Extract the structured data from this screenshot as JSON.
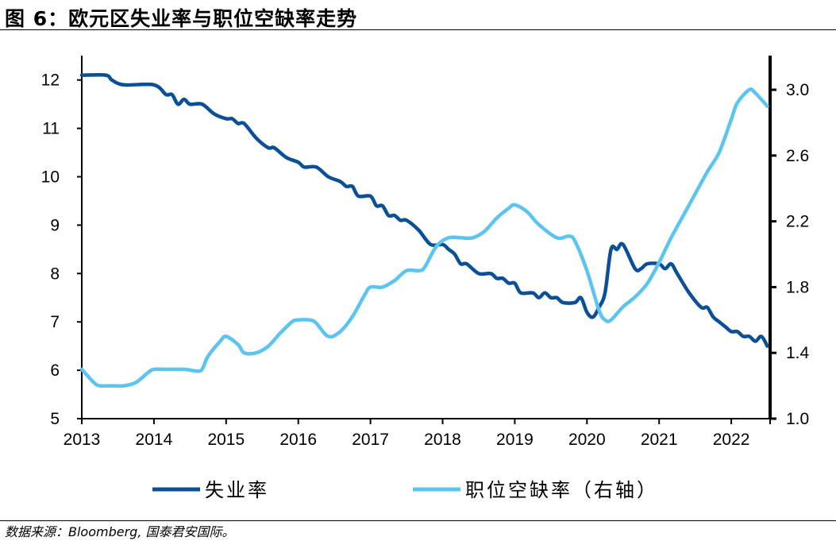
{
  "title": "图 6：欧元区失业率与职位空缺率走势",
  "source": "数据来源：Bloomberg, 国泰君安国际。",
  "chart_data": {
    "type": "line",
    "title": "图 6：欧元区失业率与职位空缺率走势",
    "x_ticks": [
      "2013",
      "2014",
      "2015",
      "2016",
      "2017",
      "2018",
      "2019",
      "2020",
      "2021",
      "2022"
    ],
    "xlim": [
      "2013-01",
      "2022-07"
    ],
    "left_axis": {
      "ylim": [
        5,
        12.5
      ],
      "ticks": [
        "5",
        "6",
        "7",
        "8",
        "9",
        "10",
        "11",
        "12"
      ]
    },
    "right_axis": {
      "ylim": [
        1.0,
        3.2
      ],
      "ticks": [
        "1.0",
        "1.4",
        "1.8",
        "2.2",
        "2.6",
        "3.0"
      ]
    },
    "grid": false,
    "legend_position": "bottom",
    "series": [
      {
        "name": "失业率",
        "axis": "left",
        "color": "#0B4F96",
        "points": [
          [
            "2013-01",
            12.1
          ],
          [
            "2013-05",
            12.1
          ],
          [
            "2013-06",
            12.0
          ],
          [
            "2013-08",
            11.9
          ],
          [
            "2014-01",
            11.9
          ],
          [
            "2014-03",
            11.7
          ],
          [
            "2014-04",
            11.7
          ],
          [
            "2014-05",
            11.5
          ],
          [
            "2014-06",
            11.6
          ],
          [
            "2014-07",
            11.5
          ],
          [
            "2014-09",
            11.5
          ],
          [
            "2014-11",
            11.3
          ],
          [
            "2015-01",
            11.2
          ],
          [
            "2015-02",
            11.2
          ],
          [
            "2015-03",
            11.1
          ],
          [
            "2015-04",
            11.1
          ],
          [
            "2015-06",
            10.8
          ],
          [
            "2015-08",
            10.6
          ],
          [
            "2015-09",
            10.6
          ],
          [
            "2015-11",
            10.4
          ],
          [
            "2016-01",
            10.3
          ],
          [
            "2016-02",
            10.2
          ],
          [
            "2016-04",
            10.2
          ],
          [
            "2016-06",
            10.0
          ],
          [
            "2016-08",
            9.9
          ],
          [
            "2016-09",
            9.8
          ],
          [
            "2016-10",
            9.8
          ],
          [
            "2016-11",
            9.6
          ],
          [
            "2017-01",
            9.6
          ],
          [
            "2017-02",
            9.4
          ],
          [
            "2017-03",
            9.4
          ],
          [
            "2017-04",
            9.2
          ],
          [
            "2017-05",
            9.2
          ],
          [
            "2017-06",
            9.1
          ],
          [
            "2017-07",
            9.1
          ],
          [
            "2017-09",
            8.9
          ],
          [
            "2017-11",
            8.6
          ],
          [
            "2018-01",
            8.6
          ],
          [
            "2018-02",
            8.5
          ],
          [
            "2018-03",
            8.4
          ],
          [
            "2018-04",
            8.2
          ],
          [
            "2018-05",
            8.2
          ],
          [
            "2018-07",
            8.0
          ],
          [
            "2018-09",
            8.0
          ],
          [
            "2018-10",
            7.9
          ],
          [
            "2018-11",
            7.9
          ],
          [
            "2018-12",
            7.8
          ],
          [
            "2019-01",
            7.8
          ],
          [
            "2019-02",
            7.6
          ],
          [
            "2019-04",
            7.6
          ],
          [
            "2019-05",
            7.5
          ],
          [
            "2019-06",
            7.6
          ],
          [
            "2019-07",
            7.5
          ],
          [
            "2019-08",
            7.5
          ],
          [
            "2019-09",
            7.4
          ],
          [
            "2019-11",
            7.4
          ],
          [
            "2019-12",
            7.5
          ],
          [
            "2020-01",
            7.2
          ],
          [
            "2020-02",
            7.1
          ],
          [
            "2020-03",
            7.3
          ],
          [
            "2020-04",
            7.6
          ],
          [
            "2020-05",
            8.5
          ],
          [
            "2020-06",
            8.5
          ],
          [
            "2020-07",
            8.6
          ],
          [
            "2020-09",
            8.1
          ],
          [
            "2020-10",
            8.1
          ],
          [
            "2020-11",
            8.2
          ],
          [
            "2021-01",
            8.2
          ],
          [
            "2021-02",
            8.1
          ],
          [
            "2021-03",
            8.2
          ],
          [
            "2021-04",
            8.0
          ],
          [
            "2021-06",
            7.6
          ],
          [
            "2021-08",
            7.3
          ],
          [
            "2021-09",
            7.3
          ],
          [
            "2021-10",
            7.1
          ],
          [
            "2021-11",
            7.0
          ],
          [
            "2021-12",
            6.9
          ],
          [
            "2022-01",
            6.8
          ],
          [
            "2022-02",
            6.8
          ],
          [
            "2022-03",
            6.7
          ],
          [
            "2022-04",
            6.7
          ],
          [
            "2022-05",
            6.6
          ],
          [
            "2022-06",
            6.7
          ],
          [
            "2022-07",
            6.5
          ]
        ]
      },
      {
        "name": "职位空缺率（右轴）",
        "axis": "right",
        "color": "#5BC4F1",
        "points": [
          [
            "2013-01",
            1.3
          ],
          [
            "2013-03",
            1.22
          ],
          [
            "2013-04",
            1.2
          ],
          [
            "2013-06",
            1.2
          ],
          [
            "2013-08",
            1.2
          ],
          [
            "2013-10",
            1.22
          ],
          [
            "2013-12",
            1.28
          ],
          [
            "2014-01",
            1.3
          ],
          [
            "2014-03",
            1.3
          ],
          [
            "2014-06",
            1.3
          ],
          [
            "2014-08",
            1.29
          ],
          [
            "2014-09",
            1.3
          ],
          [
            "2014-10",
            1.38
          ],
          [
            "2014-12",
            1.47
          ],
          [
            "2015-01",
            1.5
          ],
          [
            "2015-03",
            1.45
          ],
          [
            "2015-04",
            1.4
          ],
          [
            "2015-06",
            1.4
          ],
          [
            "2015-08",
            1.44
          ],
          [
            "2015-10",
            1.52
          ],
          [
            "2015-12",
            1.59
          ],
          [
            "2016-01",
            1.6
          ],
          [
            "2016-03",
            1.6
          ],
          [
            "2016-04",
            1.58
          ],
          [
            "2016-06",
            1.5
          ],
          [
            "2016-08",
            1.53
          ],
          [
            "2016-10",
            1.62
          ],
          [
            "2016-12",
            1.75
          ],
          [
            "2017-01",
            1.8
          ],
          [
            "2017-03",
            1.8
          ],
          [
            "2017-05",
            1.84
          ],
          [
            "2017-07",
            1.9
          ],
          [
            "2017-09",
            1.9
          ],
          [
            "2017-10",
            1.92
          ],
          [
            "2017-12",
            2.05
          ],
          [
            "2018-02",
            2.1
          ],
          [
            "2018-04",
            2.1
          ],
          [
            "2018-06",
            2.1
          ],
          [
            "2018-08",
            2.14
          ],
          [
            "2018-10",
            2.22
          ],
          [
            "2018-12",
            2.28
          ],
          [
            "2019-01",
            2.3
          ],
          [
            "2019-03",
            2.26
          ],
          [
            "2019-05",
            2.18
          ],
          [
            "2019-08",
            2.1
          ],
          [
            "2019-10",
            2.11
          ],
          [
            "2019-11",
            2.08
          ],
          [
            "2020-01",
            1.9
          ],
          [
            "2020-03",
            1.66
          ],
          [
            "2020-04",
            1.6
          ],
          [
            "2020-05",
            1.6
          ],
          [
            "2020-07",
            1.68
          ],
          [
            "2020-09",
            1.74
          ],
          [
            "2020-11",
            1.82
          ],
          [
            "2021-01",
            1.95
          ],
          [
            "2021-03",
            2.1
          ],
          [
            "2021-06",
            2.3
          ],
          [
            "2021-09",
            2.5
          ],
          [
            "2021-11",
            2.62
          ],
          [
            "2022-01",
            2.82
          ],
          [
            "2022-02",
            2.92
          ],
          [
            "2022-04",
            3.0
          ],
          [
            "2022-05",
            2.98
          ],
          [
            "2022-07",
            2.9
          ]
        ]
      }
    ]
  }
}
